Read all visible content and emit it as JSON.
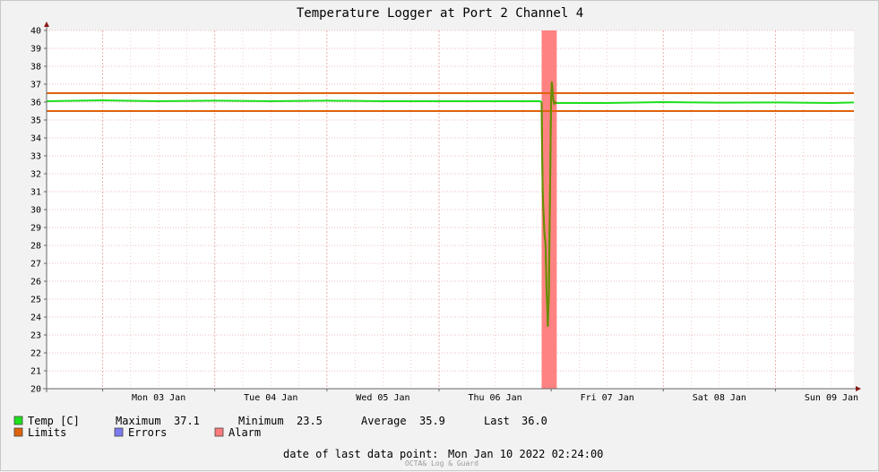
{
  "chart_data": {
    "type": "line",
    "title": "Temperature Logger at Port 2 Channel 4",
    "ylim": [
      20,
      40
    ],
    "yticks": [
      20,
      21,
      22,
      23,
      24,
      25,
      26,
      27,
      28,
      29,
      30,
      31,
      32,
      33,
      34,
      35,
      36,
      37,
      38,
      39,
      40
    ],
    "xlim_days": [
      2.5,
      9.7
    ],
    "xticks": [
      {
        "day": 3,
        "label": "Mon 03 Jan"
      },
      {
        "day": 4,
        "label": "Tue 04 Jan"
      },
      {
        "day": 5,
        "label": "Wed 05 Jan"
      },
      {
        "day": 6,
        "label": "Thu 06 Jan"
      },
      {
        "day": 7,
        "label": "Fri 07 Jan"
      },
      {
        "day": 8,
        "label": "Sat 08 Jan"
      },
      {
        "day": 9,
        "label": "Sun 09 Jan"
      }
    ],
    "grid": true,
    "limits": {
      "upper": 36.5,
      "lower": 35.5
    },
    "alarm_band": {
      "start_day": 6.915,
      "end_day": 7.05
    },
    "series": [
      {
        "name": "Temp [C]",
        "x": [
          2.5,
          3.0,
          3.5,
          4.0,
          4.5,
          5.0,
          5.5,
          6.0,
          6.5,
          6.9,
          6.915,
          6.92,
          6.925,
          6.93,
          6.94,
          6.95,
          6.96,
          6.965,
          6.97,
          6.975,
          6.98,
          6.985,
          6.99,
          6.995,
          7.0,
          7.005,
          7.01,
          7.015,
          7.02,
          7.025,
          7.03,
          7.035,
          7.04,
          7.05,
          7.1,
          7.5,
          8.0,
          8.5,
          9.0,
          9.5,
          9.7
        ],
        "y": [
          36.05,
          36.1,
          36.05,
          36.08,
          36.05,
          36.08,
          36.05,
          36.05,
          36.05,
          36.05,
          36.0,
          33.0,
          31.0,
          30.0,
          28.7,
          28.0,
          25.3,
          24.6,
          23.5,
          24.4,
          25.3,
          28.4,
          31.2,
          33.8,
          36.3,
          37.1,
          36.9,
          36.4,
          36.1,
          35.9,
          35.95,
          36.0,
          35.95,
          35.95,
          35.95,
          35.95,
          36.0,
          35.97,
          35.98,
          35.95,
          35.98
        ]
      }
    ]
  },
  "legend": {
    "temp_label": "Temp [C]",
    "maximum_label": "Maximum",
    "maximum_value": "37.1",
    "minimum_label": "Minimum",
    "minimum_value": "23.5",
    "average_label": "Average",
    "average_value": "35.9",
    "last_label": "Last",
    "last_value": "36.0",
    "limits_label": "Limits",
    "errors_label": "Errors",
    "alarm_label": "Alarm"
  },
  "footer": {
    "last_data_label": "date of last data point:",
    "last_data_value": "Mon Jan 10 2022 02:24:00",
    "brand": "OCTA& Log & Guard"
  },
  "colors": {
    "temp": "#1ee01e",
    "temp_dark": "#6b8a00",
    "limits": "#e0620c",
    "errors": "#7b7bf0",
    "alarm": "#ff7b7b",
    "grid": "#e8a8a8",
    "axis": "#666666",
    "arrow": "#8b1a1a"
  }
}
